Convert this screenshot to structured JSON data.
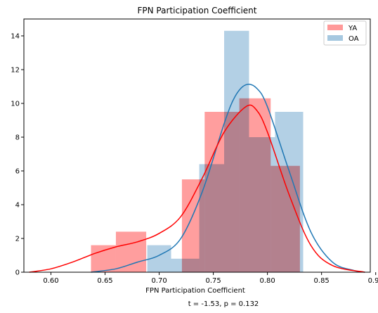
{
  "chart_data": {
    "type": "bar",
    "title": "FPN Participation Coefficient",
    "xlabel": "FPN Participation Coefficient",
    "ylabel": "",
    "annotation": "t = -1.53, p = 0.132",
    "xlim": [
      0.575,
      0.895
    ],
    "ylim": [
      0,
      15
    ],
    "xticks": [
      0.6,
      0.65,
      0.7,
      0.75,
      0.8,
      0.85,
      0.9
    ],
    "xtick_labels": [
      "0.60",
      "0.65",
      "0.70",
      "0.75",
      "0.80",
      "0.85",
      "0.90"
    ],
    "yticks": [
      0,
      2,
      4,
      6,
      8,
      10,
      12,
      14
    ],
    "ytick_labels": [
      "0",
      "2",
      "4",
      "6",
      "8",
      "10",
      "12",
      "14"
    ],
    "legend_position": "top-right",
    "grid": false,
    "series": [
      {
        "name": "YA",
        "color": "#ff0000",
        "bar_color": "#ff9999",
        "bins": [
          {
            "x0": 0.637,
            "x1": 0.66,
            "count": 1.6
          },
          {
            "x0": 0.66,
            "x1": 0.688,
            "count": 2.4
          },
          {
            "x0": 0.688,
            "x1": 0.721,
            "count": 0.0
          },
          {
            "x0": 0.721,
            "x1": 0.742,
            "count": 5.5
          },
          {
            "x0": 0.742,
            "x1": 0.774,
            "count": 9.5
          },
          {
            "x0": 0.774,
            "x1": 0.803,
            "count": 10.3
          },
          {
            "x0": 0.803,
            "x1": 0.83,
            "count": 6.3
          }
        ],
        "kde": [
          [
            0.58,
            0.0
          ],
          [
            0.6,
            0.2
          ],
          [
            0.62,
            0.6
          ],
          [
            0.64,
            1.1
          ],
          [
            0.66,
            1.5
          ],
          [
            0.68,
            1.8
          ],
          [
            0.7,
            2.3
          ],
          [
            0.72,
            3.3
          ],
          [
            0.74,
            5.6
          ],
          [
            0.76,
            8.3
          ],
          [
            0.78,
            9.8
          ],
          [
            0.79,
            9.6
          ],
          [
            0.8,
            8.3
          ],
          [
            0.82,
            4.6
          ],
          [
            0.84,
            1.6
          ],
          [
            0.86,
            0.4
          ],
          [
            0.89,
            0.0
          ]
        ]
      },
      {
        "name": "OA",
        "color": "#1f77b4",
        "bar_color": "#a6c8e0",
        "bins": [
          {
            "x0": 0.689,
            "x1": 0.711,
            "count": 1.6
          },
          {
            "x0": 0.711,
            "x1": 0.737,
            "count": 0.8
          },
          {
            "x0": 0.737,
            "x1": 0.76,
            "count": 6.4
          },
          {
            "x0": 0.76,
            "x1": 0.783,
            "count": 14.3
          },
          {
            "x0": 0.783,
            "x1": 0.807,
            "count": 8.0
          },
          {
            "x0": 0.807,
            "x1": 0.833,
            "count": 9.5
          }
        ],
        "kde": [
          [
            0.637,
            0.0
          ],
          [
            0.66,
            0.2
          ],
          [
            0.68,
            0.6
          ],
          [
            0.7,
            1.0
          ],
          [
            0.72,
            2.0
          ],
          [
            0.74,
            4.8
          ],
          [
            0.76,
            8.8
          ],
          [
            0.77,
            10.4
          ],
          [
            0.78,
            11.1
          ],
          [
            0.79,
            10.9
          ],
          [
            0.8,
            9.8
          ],
          [
            0.82,
            6.0
          ],
          [
            0.84,
            2.4
          ],
          [
            0.86,
            0.6
          ],
          [
            0.88,
            0.1
          ],
          [
            0.89,
            0.0
          ]
        ]
      }
    ]
  }
}
